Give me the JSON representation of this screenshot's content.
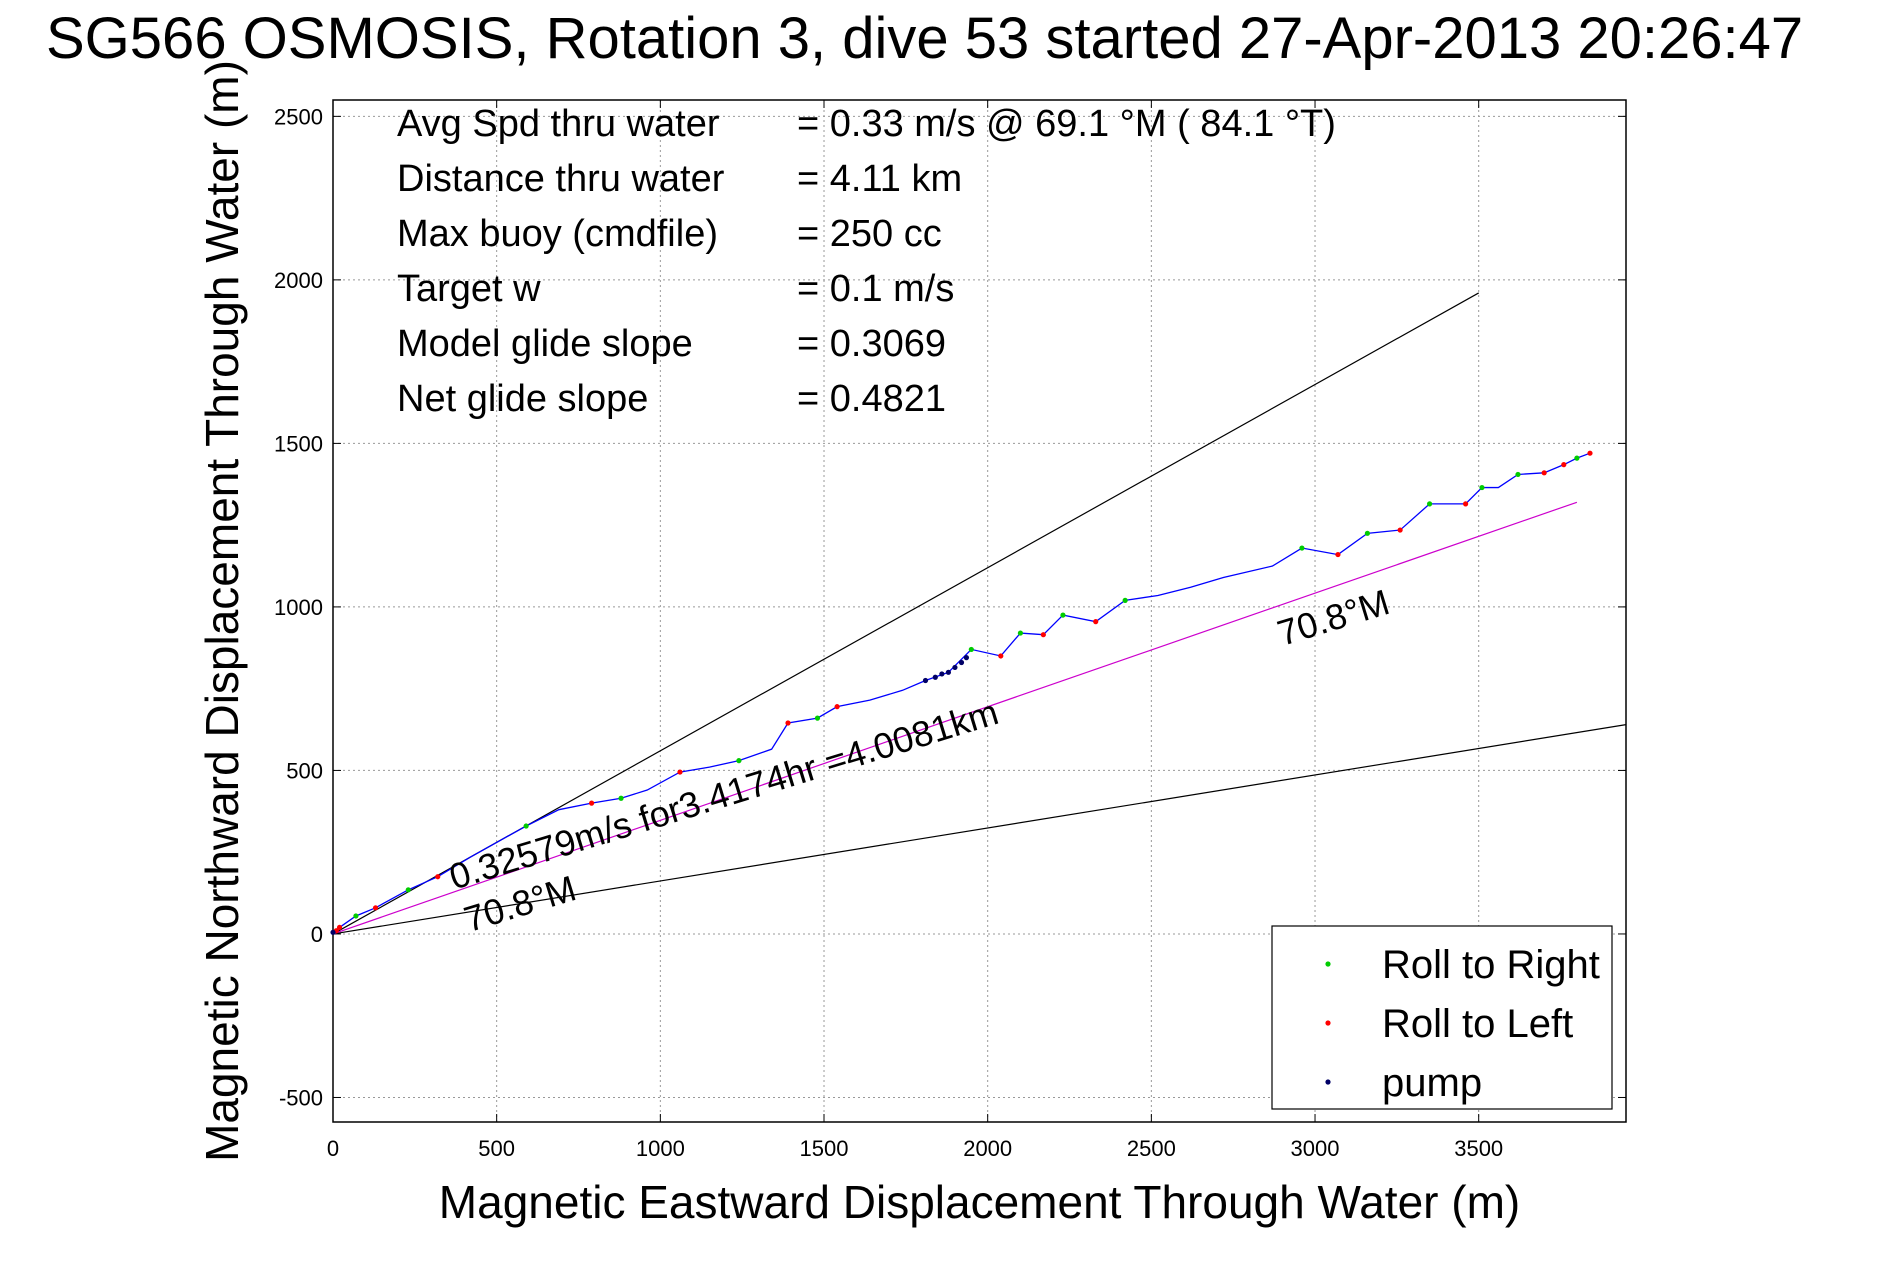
{
  "title": "SG566 OSMOSIS, Rotation 3, dive 53 started 27-Apr-2013 20:26:47",
  "chart_data": {
    "type": "line",
    "title": "SG566 OSMOSIS, Rotation 3, dive 53 started 27-Apr-2013 20:26:47",
    "xlabel": "Magnetic Eastward Displacement Through Water (m)",
    "ylabel": "Magnetic Northward Displacement Through Water (m)",
    "xlim": [
      0,
      3950
    ],
    "ylim": [
      -575,
      2550
    ],
    "xticks": [
      0,
      500,
      1000,
      1500,
      2000,
      2500,
      3000,
      3500
    ],
    "yticks": [
      -500,
      0,
      500,
      1000,
      1500,
      2000,
      2500
    ],
    "grid": true,
    "info": [
      {
        "label": "Avg Spd thru water",
        "value": "=  0.33 m/s @  69.1 °M ( 84.1 °T)"
      },
      {
        "label": "Distance thru water",
        "value": "=  4.11 km"
      },
      {
        "label": "Max buoy (cmdfile)",
        "value": "= 250 cc"
      },
      {
        "label": "Target w",
        "value": "= 0.1 m/s"
      },
      {
        "label": "Model glide slope",
        "value": "= 0.3069"
      },
      {
        "label": "Net glide slope",
        "value": "= 0.4821"
      }
    ],
    "reference_lines": [
      {
        "color": "#000000",
        "points": [
          [
            0,
            0
          ],
          [
            3500,
            1960
          ]
        ]
      },
      {
        "color": "#000000",
        "points": [
          [
            0,
            0
          ],
          [
            3950,
            640
          ]
        ]
      },
      {
        "color": "#cc00cc",
        "points": [
          [
            0,
            0
          ],
          [
            3800,
            1320
          ]
        ]
      }
    ],
    "track": {
      "color": "#0000ff",
      "points": [
        [
          0,
          0
        ],
        [
          20,
          20
        ],
        [
          70,
          55
        ],
        [
          130,
          80
        ],
        [
          230,
          135
        ],
        [
          320,
          175
        ],
        [
          420,
          235
        ],
        [
          500,
          280
        ],
        [
          590,
          330
        ],
        [
          690,
          380
        ],
        [
          790,
          400
        ],
        [
          880,
          415
        ],
        [
          960,
          440
        ],
        [
          1060,
          495
        ],
        [
          1150,
          510
        ],
        [
          1240,
          530
        ],
        [
          1340,
          565
        ],
        [
          1390,
          645
        ],
        [
          1480,
          660
        ],
        [
          1540,
          695
        ],
        [
          1640,
          715
        ],
        [
          1740,
          745
        ],
        [
          1810,
          775
        ],
        [
          1880,
          800
        ],
        [
          1950,
          870
        ],
        [
          2040,
          850
        ],
        [
          2100,
          920
        ],
        [
          2170,
          915
        ],
        [
          2230,
          975
        ],
        [
          2330,
          955
        ],
        [
          2420,
          1020
        ],
        [
          2520,
          1035
        ],
        [
          2620,
          1060
        ],
        [
          2720,
          1090
        ],
        [
          2870,
          1125
        ],
        [
          2960,
          1180
        ],
        [
          3070,
          1160
        ],
        [
          3160,
          1225
        ],
        [
          3260,
          1235
        ],
        [
          3350,
          1315
        ],
        [
          3460,
          1315
        ],
        [
          3510,
          1365
        ],
        [
          3560,
          1365
        ],
        [
          3620,
          1405
        ],
        [
          3700,
          1410
        ],
        [
          3760,
          1435
        ],
        [
          3800,
          1455
        ],
        [
          3840,
          1470
        ]
      ]
    },
    "markers": {
      "roll_right": [
        [
          70,
          55
        ],
        [
          230,
          135
        ],
        [
          590,
          330
        ],
        [
          880,
          415
        ],
        [
          1240,
          530
        ],
        [
          1480,
          660
        ],
        [
          1950,
          870
        ],
        [
          2100,
          920
        ],
        [
          2230,
          975
        ],
        [
          2420,
          1020
        ],
        [
          2960,
          1180
        ],
        [
          3160,
          1225
        ],
        [
          3350,
          1315
        ],
        [
          3510,
          1365
        ],
        [
          3620,
          1405
        ],
        [
          3800,
          1455
        ]
      ],
      "roll_left": [
        [
          10,
          10
        ],
        [
          20,
          20
        ],
        [
          130,
          80
        ],
        [
          320,
          175
        ],
        [
          790,
          400
        ],
        [
          1060,
          495
        ],
        [
          1390,
          645
        ],
        [
          1540,
          695
        ],
        [
          2040,
          850
        ],
        [
          2170,
          915
        ],
        [
          2330,
          955
        ],
        [
          3070,
          1160
        ],
        [
          3260,
          1235
        ],
        [
          3460,
          1315
        ],
        [
          3700,
          1410
        ],
        [
          3760,
          1435
        ],
        [
          3840,
          1470
        ]
      ],
      "pump": [
        [
          0,
          5
        ],
        [
          1810,
          775
        ],
        [
          1840,
          785
        ],
        [
          1860,
          795
        ],
        [
          1880,
          800
        ],
        [
          1900,
          815
        ],
        [
          1920,
          830
        ],
        [
          1935,
          845
        ]
      ]
    },
    "annotations": [
      {
        "text": "0.32579m/s for3.4174hr =4.0081km",
        "x": 370,
        "y": 135,
        "angle": -17
      },
      {
        "text": "70.8°M",
        "x": 415,
        "y": 5,
        "angle": -17
      },
      {
        "text": "70.8°M",
        "x": 2900,
        "y": 880,
        "angle": -17
      }
    ],
    "legend": {
      "position": "bottom-right",
      "entries": [
        {
          "label": "Roll to Right",
          "color": "#00cc00"
        },
        {
          "label": "Roll to Left",
          "color": "#ff0000"
        },
        {
          "label": "pump",
          "color": "#000066"
        }
      ]
    }
  }
}
